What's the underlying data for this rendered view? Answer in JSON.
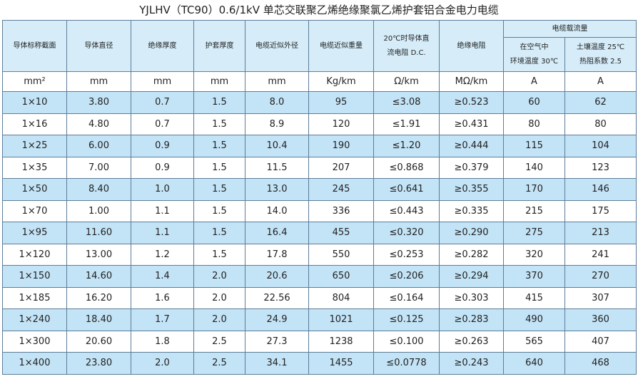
{
  "title": "YJLHV（TC90）0.6/1kV 单芯交联聚乙烯绝缘聚氯乙烯护套铝合金电力电缆",
  "header": {
    "columns": [
      [
        "导体标称截面"
      ],
      [
        "导体直径"
      ],
      [
        "绝缘厚度"
      ],
      [
        "护套厚度"
      ],
      [
        "电缆近似外径"
      ],
      [
        "电缆近似重量"
      ],
      [
        "20℃时导体直",
        "流电阻 D.C."
      ],
      [
        "绝缘电阻"
      ]
    ],
    "group": "电缆载流量",
    "subcolumns": [
      [
        "在空气中",
        "环境温度 30℃"
      ],
      [
        "土壤温度 25℃",
        "热阻系数 2.5"
      ]
    ]
  },
  "units": [
    "mm²",
    "mm",
    "mm",
    "mm",
    "mm",
    "Kg/km",
    "Ω/km",
    "MΩ/km",
    "A",
    "A"
  ],
  "rows": [
    [
      "1×10",
      "3.80",
      "0.7",
      "1.5",
      "8.0",
      "95",
      "≤3.08",
      "≥0.523",
      "60",
      "62"
    ],
    [
      "1×16",
      "4.80",
      "0.7",
      "1.5",
      "8.9",
      "120",
      "≤1.91",
      "≥0.431",
      "80",
      "80"
    ],
    [
      "1×25",
      "6.00",
      "0.9",
      "1.5",
      "10.4",
      "190",
      "≤1.20",
      "≥0.444",
      "115",
      "104"
    ],
    [
      "1×35",
      "7.00",
      "0.9",
      "1.5",
      "11.5",
      "207",
      "≤0.868",
      "≥0.379",
      "140",
      "123"
    ],
    [
      "1×50",
      "8.40",
      "1.0",
      "1.5",
      "13.0",
      "245",
      "≤0.641",
      "≥0.355",
      "170",
      "146"
    ],
    [
      "1×70",
      "1.00",
      "1.1",
      "1.5",
      "14.0",
      "336",
      "≤0.443",
      "≥0.335",
      "215",
      "175"
    ],
    [
      "1×95",
      "11.60",
      "1.1",
      "1.5",
      "16.4",
      "455",
      "≤0.320",
      "≥0.290",
      "275",
      "213"
    ],
    [
      "1×120",
      "13.00",
      "1.2",
      "1.5",
      "17.8",
      "550",
      "≤0.253",
      "≥0.282",
      "320",
      "241"
    ],
    [
      "1×150",
      "14.60",
      "1.4",
      "2.0",
      "20.6",
      "650",
      "≤0.206",
      "≥0.294",
      "370",
      "270"
    ],
    [
      "1×185",
      "16.20",
      "1.6",
      "2.0",
      "22.56",
      "804",
      "≤0.164",
      "≥0.303",
      "415",
      "307"
    ],
    [
      "1×240",
      "18.40",
      "1.7",
      "2.0",
      "24.9",
      "1021",
      "≤0.125",
      "≥0.283",
      "490",
      "360"
    ],
    [
      "1×300",
      "20.60",
      "1.8",
      "2.5",
      "27.3",
      "1238",
      "≤0.100",
      "≥0.263",
      "565",
      "407"
    ],
    [
      "1×400",
      "23.80",
      "2.0",
      "2.5",
      "34.1",
      "1455",
      "≤0.0778",
      "≥0.243",
      "640",
      "468"
    ]
  ]
}
